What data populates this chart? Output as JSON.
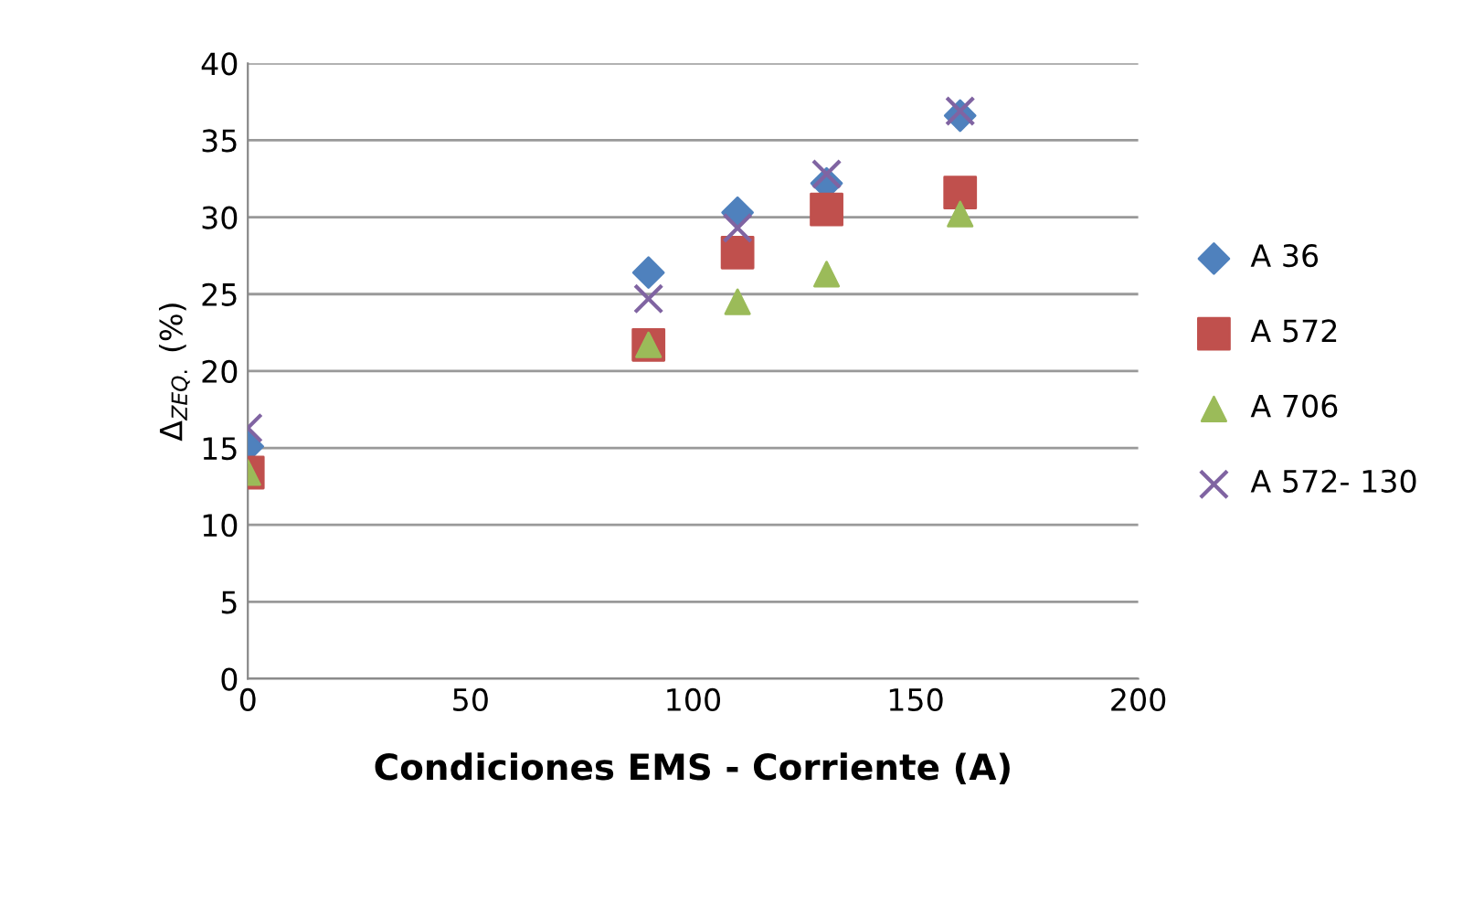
{
  "chart_data": {
    "type": "scatter",
    "xlabel": "Condiciones EMS - Corriente (A)",
    "ylabel": "Δ$_{ZEQ.}$ (%)",
    "x": [
      0,
      90,
      110,
      130,
      160
    ],
    "series": [
      {
        "name": "A 36",
        "color": "#4f81bd",
        "marker": "diamond",
        "values": [
          15.1,
          26.4,
          30.3,
          32.2,
          36.6
        ]
      },
      {
        "name": "A 572",
        "color": "#c0504d",
        "marker": "square",
        "values": [
          13.4,
          21.7,
          27.7,
          30.5,
          31.6
        ]
      },
      {
        "name": "A 706",
        "color": "#9bbb59",
        "marker": "triangle",
        "values": [
          13.4,
          21.7,
          24.5,
          26.3,
          30.2
        ]
      },
      {
        "name": "A 572- 130",
        "color": "#8064a2",
        "marker": "cross",
        "values": [
          16.3,
          24.7,
          29.3,
          32.8,
          36.9
        ]
      }
    ],
    "xlim": [
      0,
      200
    ],
    "xticks": [
      0,
      50,
      100,
      150,
      200
    ],
    "ylim": [
      0,
      40
    ],
    "yticks": [
      0,
      5,
      10,
      15,
      20,
      25,
      30,
      35,
      40
    ],
    "grid": "y",
    "legend": "right"
  }
}
